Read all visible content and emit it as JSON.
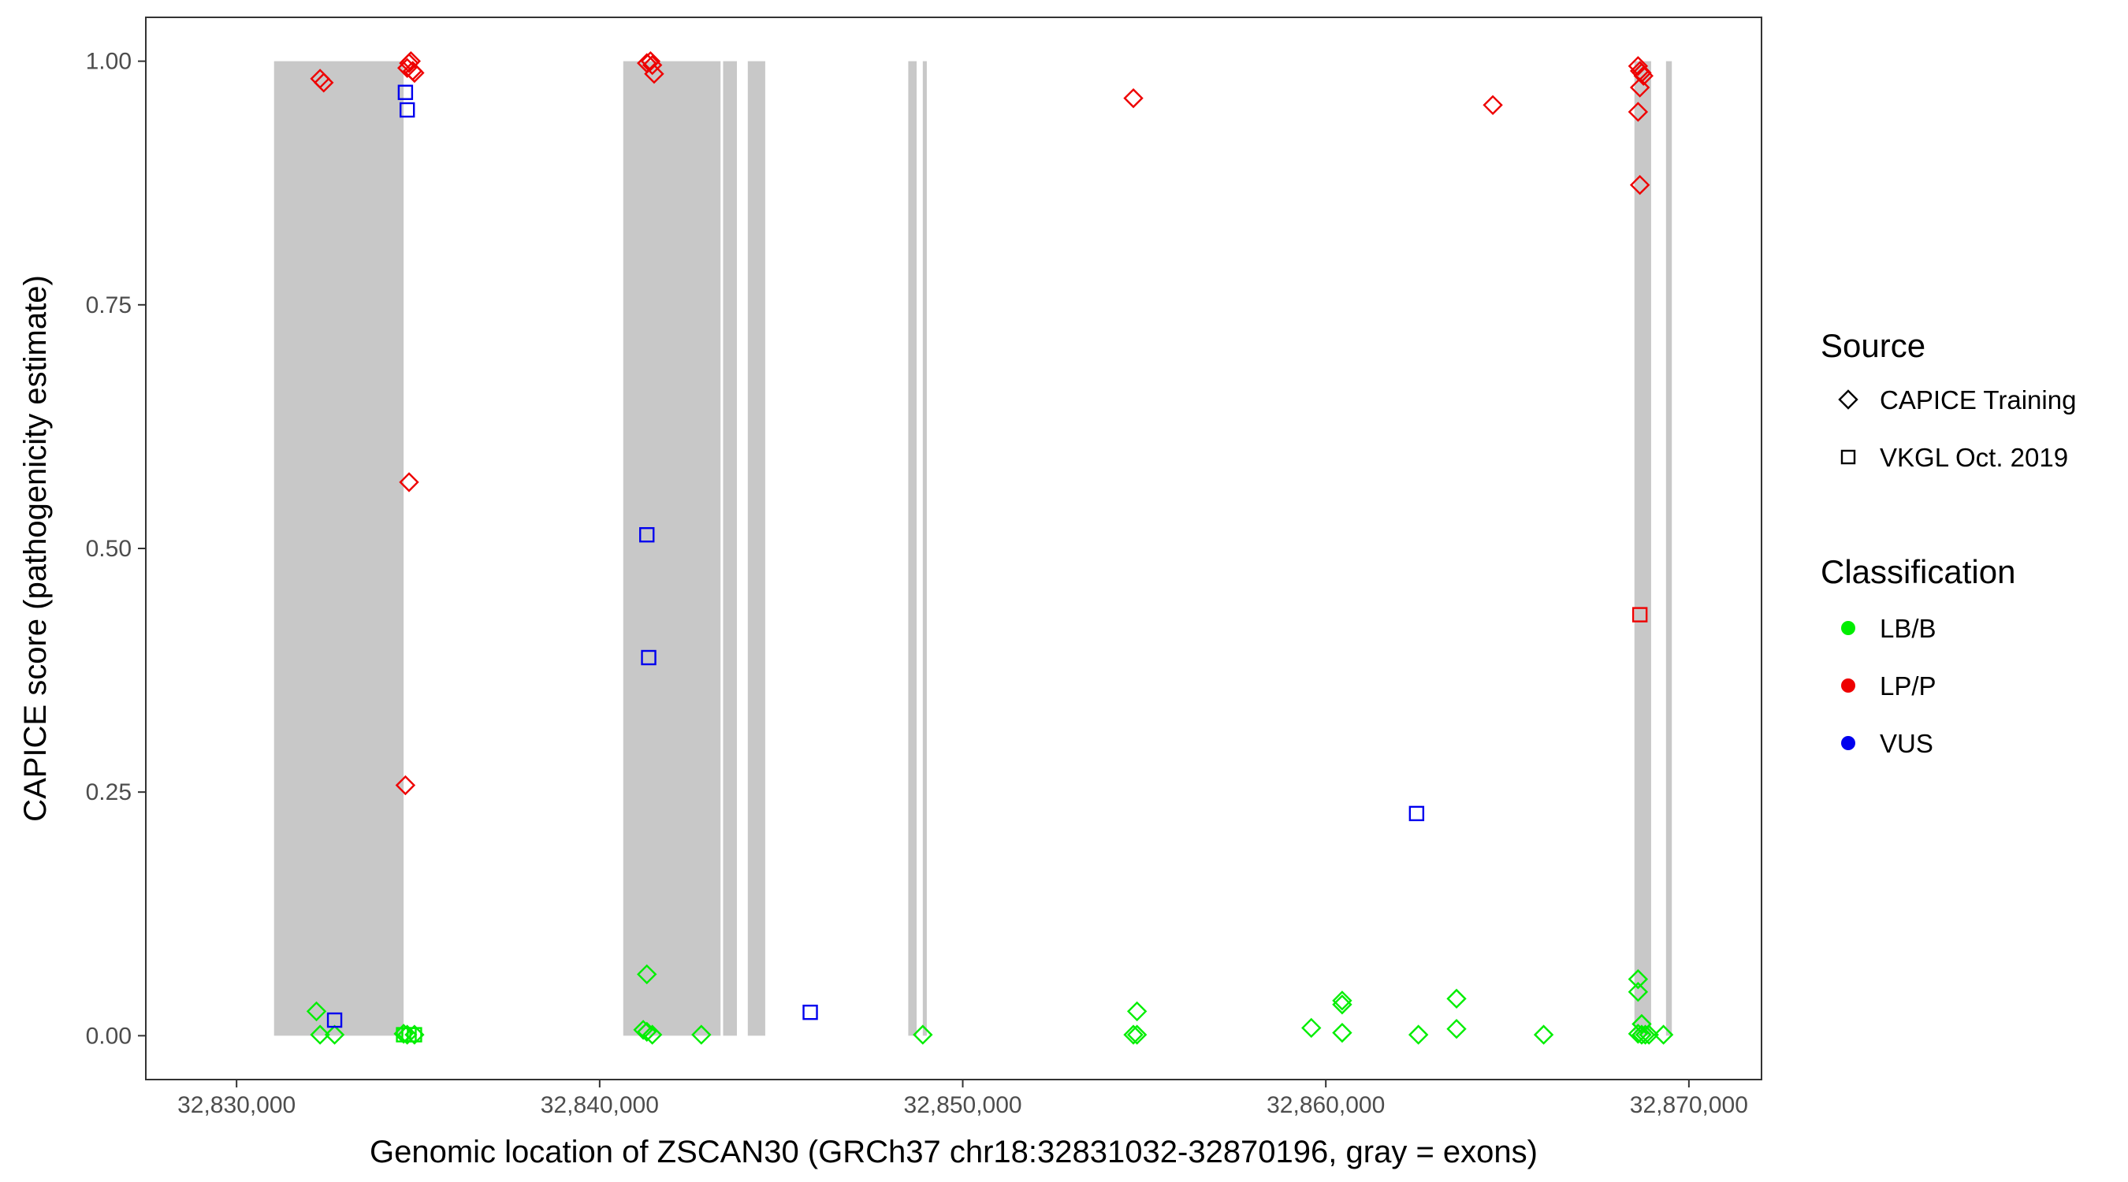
{
  "chart_data": {
    "type": "scatter",
    "title": "",
    "xlabel": "Genomic location of ZSCAN30 (GRCh37 chr18:32831032-32870196, gray = exons)",
    "ylabel": "CAPICE score (pathogenicity estimate)",
    "xlim": [
      32827500,
      32872000
    ],
    "ylim": [
      -0.045,
      1.045
    ],
    "x_ticks": [
      32830000,
      32840000,
      32850000,
      32860000,
      32870000
    ],
    "x_tick_labels": [
      "32,830,000",
      "32,840,000",
      "32,850,000",
      "32,860,000",
      "32,870,000"
    ],
    "y_ticks": [
      0,
      0.25,
      0.5,
      0.75,
      1
    ],
    "y_tick_labels": [
      "0.00",
      "0.25",
      "0.50",
      "0.75",
      "1.00"
    ],
    "grid": false,
    "background": "#ffffff",
    "exon_color": "#c8c8c8",
    "exons": [
      [
        32831032,
        32834600
      ],
      [
        32840650,
        32843330
      ],
      [
        32843400,
        32843780
      ],
      [
        32844080,
        32844560
      ],
      [
        32848500,
        32848730
      ],
      [
        32848900,
        32849010
      ],
      [
        32868500,
        32868960
      ],
      [
        32869370,
        32869530
      ]
    ],
    "legend": {
      "position": "right",
      "source_title": "Source",
      "source_entries": [
        {
          "label": "CAPICE Training",
          "shape": "diamond"
        },
        {
          "label": "VKGL Oct. 2019",
          "shape": "square"
        }
      ],
      "class_title": "Classification",
      "class_entries": [
        {
          "label": "LB/B",
          "color": "#00ee00"
        },
        {
          "label": "LP/P",
          "color": "#ee0000"
        },
        {
          "label": "VUS",
          "color": "#0000ee"
        }
      ]
    },
    "colors": {
      "LB/B": "#00ee00",
      "LP/P": "#ee0000",
      "VUS": "#0000ee"
    },
    "series": [
      {
        "source": "CAPICE Training",
        "class": "LP/P",
        "points": [
          [
            32832300,
            0.982
          ],
          [
            32832400,
            0.978
          ],
          [
            32834700,
            0.993
          ],
          [
            32834750,
            0.998
          ],
          [
            32834800,
            1.0
          ],
          [
            32834850,
            0.99
          ],
          [
            32834900,
            0.988
          ],
          [
            32834750,
            0.568
          ],
          [
            32834650,
            0.257
          ],
          [
            32841300,
            0.998
          ],
          [
            32841400,
            1.0
          ],
          [
            32841450,
            0.996
          ],
          [
            32841500,
            0.987
          ],
          [
            32854700,
            0.962
          ],
          [
            32864600,
            0.955
          ],
          [
            32868600,
            0.995
          ],
          [
            32868650,
            0.99
          ],
          [
            32868700,
            0.988
          ],
          [
            32868750,
            0.985
          ],
          [
            32868650,
            0.973
          ],
          [
            32868600,
            0.948
          ],
          [
            32868650,
            0.873
          ]
        ]
      },
      {
        "source": "CAPICE Training",
        "class": "LB/B",
        "points": [
          [
            32832200,
            0.025
          ],
          [
            32832300,
            0.001
          ],
          [
            32832700,
            0.001
          ],
          [
            32834600,
            0.002
          ],
          [
            32834700,
            0.001
          ],
          [
            32834900,
            0.001
          ],
          [
            32841300,
            0.063
          ],
          [
            32841200,
            0.006
          ],
          [
            32841300,
            0.004
          ],
          [
            32841450,
            0.001
          ],
          [
            32842800,
            0.001
          ],
          [
            32848900,
            0.001
          ],
          [
            32854800,
            0.025
          ],
          [
            32854700,
            0.001
          ],
          [
            32854800,
            0.001
          ],
          [
            32859600,
            0.008
          ],
          [
            32860450,
            0.036
          ],
          [
            32860450,
            0.032
          ],
          [
            32860450,
            0.003
          ],
          [
            32862550,
            0.001
          ],
          [
            32863600,
            0.038
          ],
          [
            32863600,
            0.007
          ],
          [
            32866000,
            0.001
          ],
          [
            32868600,
            0.058
          ],
          [
            32868600,
            0.045
          ],
          [
            32868700,
            0.012
          ],
          [
            32868600,
            0.002
          ],
          [
            32868700,
            0.001
          ],
          [
            32868800,
            0.001
          ],
          [
            32868900,
            0.001
          ],
          [
            32869300,
            0.001
          ]
        ]
      },
      {
        "source": "VKGL Oct. 2019",
        "class": "VUS",
        "points": [
          [
            32832700,
            0.016
          ],
          [
            32834650,
            0.968
          ],
          [
            32834700,
            0.95
          ],
          [
            32841300,
            0.514
          ],
          [
            32841350,
            0.388
          ],
          [
            32845800,
            0.024
          ],
          [
            32862500,
            0.228
          ]
        ]
      },
      {
        "source": "VKGL Oct. 2019",
        "class": "LB/B",
        "points": [
          [
            32834600,
            0.001
          ],
          [
            32834750,
            0.001
          ],
          [
            32834900,
            0.001
          ]
        ]
      },
      {
        "source": "VKGL Oct. 2019",
        "class": "LP/P",
        "points": [
          [
            32868650,
            0.432
          ]
        ]
      }
    ]
  }
}
